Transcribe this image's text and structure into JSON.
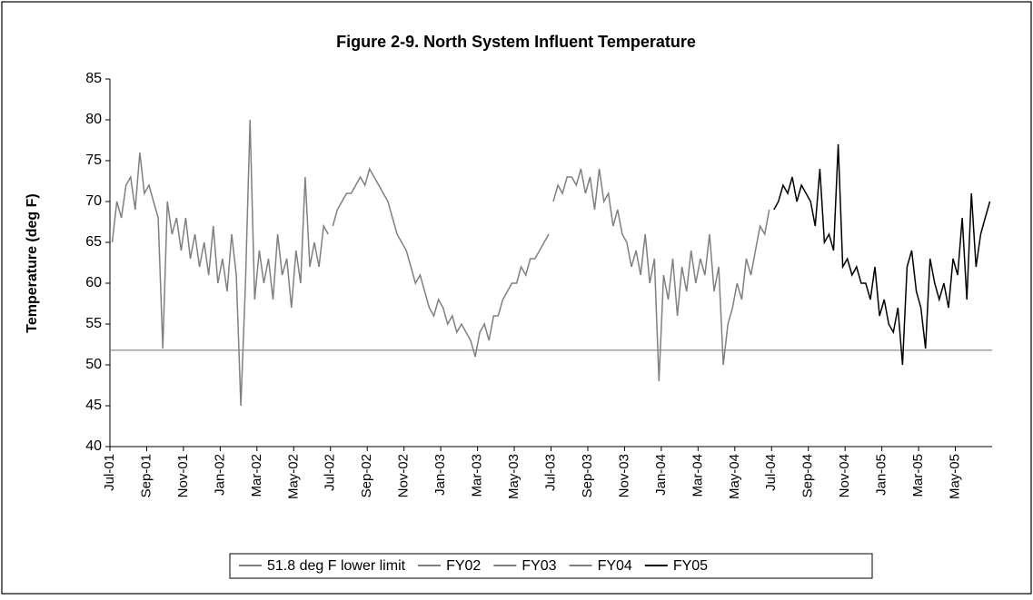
{
  "chart_data": {
    "type": "line",
    "title": "Figure 2-9.  North System Influent Temperature",
    "y_label": "Temperature (deg F)",
    "xlim": [
      "2001-07",
      "2005-07"
    ],
    "xticks": [
      {
        "value": "2001-07",
        "label": "Jul-01"
      },
      {
        "value": "2001-09",
        "label": "Sep-01"
      },
      {
        "value": "2001-11",
        "label": "Nov-01"
      },
      {
        "value": "2002-01",
        "label": "Jan-02"
      },
      {
        "value": "2002-03",
        "label": "Mar-02"
      },
      {
        "value": "2002-05",
        "label": "May-02"
      },
      {
        "value": "2002-07",
        "label": "Jul-02"
      },
      {
        "value": "2002-09",
        "label": "Sep-02"
      },
      {
        "value": "2002-11",
        "label": "Nov-02"
      },
      {
        "value": "2003-01",
        "label": "Jan-03"
      },
      {
        "value": "2003-03",
        "label": "Mar-03"
      },
      {
        "value": "2003-05",
        "label": "May-03"
      },
      {
        "value": "2003-07",
        "label": "Jul-03"
      },
      {
        "value": "2003-09",
        "label": "Sep-03"
      },
      {
        "value": "2003-11",
        "label": "Nov-03"
      },
      {
        "value": "2004-01",
        "label": "Jan-04"
      },
      {
        "value": "2004-03",
        "label": "Mar-04"
      },
      {
        "value": "2004-05",
        "label": "May-04"
      },
      {
        "value": "2004-07",
        "label": "Jul-04"
      },
      {
        "value": "2004-09",
        "label": "Sep-04"
      },
      {
        "value": "2004-11",
        "label": "Nov-04"
      },
      {
        "value": "2005-01",
        "label": "Jan-05"
      },
      {
        "value": "2005-03",
        "label": "Mar-05"
      },
      {
        "value": "2005-05",
        "label": "May-05"
      }
    ],
    "ylim": [
      40,
      85
    ],
    "yticks": [
      40,
      45,
      50,
      55,
      60,
      65,
      70,
      75,
      80,
      85
    ],
    "series": [
      {
        "name": "51.8 deg F lower limit",
        "color": "#808080",
        "x": [
          "2001-07",
          "2005-07"
        ],
        "values": [
          51.8,
          51.8
        ]
      },
      {
        "name": "FY02",
        "color": "#808080",
        "x": [
          "2001-07",
          "2001-07",
          "2001-07",
          "2001-07",
          "2001-08",
          "2001-08",
          "2001-08",
          "2001-08",
          "2001-09",
          "2001-09",
          "2001-09",
          "2001-09",
          "2001-10",
          "2001-10",
          "2001-10",
          "2001-10",
          "2001-11",
          "2001-11",
          "2001-11",
          "2001-11",
          "2001-12",
          "2001-12",
          "2001-12",
          "2001-12",
          "2002-01",
          "2002-01",
          "2002-01",
          "2002-01",
          "2002-02",
          "2002-02",
          "2002-02",
          "2002-02",
          "2002-03",
          "2002-03",
          "2002-03",
          "2002-03",
          "2002-04",
          "2002-04",
          "2002-04",
          "2002-04",
          "2002-05",
          "2002-05",
          "2002-05",
          "2002-05",
          "2002-06",
          "2002-06",
          "2002-06",
          "2002-06"
        ],
        "values": [
          65,
          70,
          68,
          72,
          73,
          69,
          76,
          71,
          72,
          70,
          68,
          52,
          70,
          66,
          68,
          64,
          68,
          63,
          66,
          62,
          65,
          61,
          67,
          60,
          63,
          59,
          66,
          61,
          45,
          60,
          80,
          58,
          64,
          60,
          63,
          58,
          66,
          61,
          63,
          57,
          64,
          60,
          73,
          62,
          65,
          62,
          67,
          66
        ]
      },
      {
        "name": "FY03",
        "color": "#808080",
        "x": [
          "2002-07",
          "2002-07",
          "2002-07",
          "2002-07",
          "2002-08",
          "2002-08",
          "2002-08",
          "2002-08",
          "2002-09",
          "2002-09",
          "2002-09",
          "2002-09",
          "2002-10",
          "2002-10",
          "2002-10",
          "2002-10",
          "2002-11",
          "2002-11",
          "2002-11",
          "2002-11",
          "2002-12",
          "2002-12",
          "2002-12",
          "2002-12",
          "2003-01",
          "2003-01",
          "2003-01",
          "2003-01",
          "2003-02",
          "2003-02",
          "2003-02",
          "2003-02",
          "2003-03",
          "2003-03",
          "2003-03",
          "2003-03",
          "2003-04",
          "2003-04",
          "2003-04",
          "2003-04",
          "2003-05",
          "2003-05",
          "2003-05",
          "2003-05",
          "2003-06",
          "2003-06",
          "2003-06",
          "2003-06"
        ],
        "values": [
          67,
          69,
          70,
          71,
          71,
          72,
          73,
          72,
          74,
          73,
          72,
          71,
          70,
          68,
          66,
          65,
          64,
          62,
          60,
          61,
          59,
          57,
          56,
          58,
          57,
          55,
          56,
          54,
          55,
          54,
          53,
          51,
          54,
          55,
          53,
          56,
          56,
          58,
          59,
          60,
          60,
          62,
          61,
          63,
          63,
          64,
          65,
          66
        ]
      },
      {
        "name": "FY04",
        "color": "#808080",
        "x": [
          "2003-07",
          "2003-07",
          "2003-07",
          "2003-07",
          "2003-08",
          "2003-08",
          "2003-08",
          "2003-08",
          "2003-09",
          "2003-09",
          "2003-09",
          "2003-09",
          "2003-10",
          "2003-10",
          "2003-10",
          "2003-10",
          "2003-11",
          "2003-11",
          "2003-11",
          "2003-11",
          "2003-12",
          "2003-12",
          "2003-12",
          "2003-12",
          "2004-01",
          "2004-01",
          "2004-01",
          "2004-01",
          "2004-02",
          "2004-02",
          "2004-02",
          "2004-02",
          "2004-03",
          "2004-03",
          "2004-03",
          "2004-03",
          "2004-04",
          "2004-04",
          "2004-04",
          "2004-04",
          "2004-05",
          "2004-05",
          "2004-05",
          "2004-05",
          "2004-06",
          "2004-06",
          "2004-06",
          "2004-06"
        ],
        "values": [
          70,
          72,
          71,
          73,
          73,
          72,
          74,
          71,
          73,
          69,
          74,
          70,
          71,
          67,
          69,
          66,
          65,
          62,
          64,
          61,
          66,
          60,
          63,
          48,
          61,
          58,
          63,
          56,
          62,
          59,
          64,
          60,
          63,
          61,
          66,
          59,
          62,
          50,
          55,
          57,
          60,
          58,
          63,
          61,
          64,
          67,
          66,
          69
        ]
      },
      {
        "name": "FY05",
        "color": "#000000",
        "x": [
          "2004-07",
          "2004-07",
          "2004-07",
          "2004-07",
          "2004-08",
          "2004-08",
          "2004-08",
          "2004-08",
          "2004-09",
          "2004-09",
          "2004-09",
          "2004-09",
          "2004-10",
          "2004-10",
          "2004-10",
          "2004-10",
          "2004-11",
          "2004-11",
          "2004-11",
          "2004-11",
          "2004-12",
          "2004-12",
          "2004-12",
          "2004-12",
          "2005-01",
          "2005-01",
          "2005-01",
          "2005-01",
          "2005-02",
          "2005-02",
          "2005-02",
          "2005-02",
          "2005-03",
          "2005-03",
          "2005-03",
          "2005-03",
          "2005-04",
          "2005-04",
          "2005-04",
          "2005-04",
          "2005-05",
          "2005-05",
          "2005-05",
          "2005-05",
          "2005-06",
          "2005-06",
          "2005-06",
          "2005-06"
        ],
        "values": [
          69,
          70,
          72,
          71,
          73,
          70,
          72,
          71,
          70,
          67,
          74,
          65,
          66,
          64,
          77,
          62,
          63,
          61,
          62,
          60,
          60,
          58,
          62,
          56,
          58,
          55,
          54,
          57,
          50,
          62,
          64,
          59,
          57,
          52,
          63,
          60,
          58,
          60,
          57,
          63,
          61,
          68,
          58,
          71,
          62,
          66,
          68,
          70
        ]
      }
    ]
  }
}
